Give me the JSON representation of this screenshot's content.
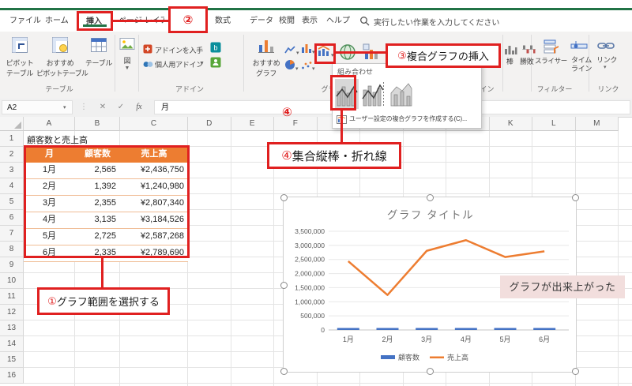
{
  "tabs": {
    "file": "ファイル",
    "home": "ホーム",
    "insert": "挿入",
    "page_layout": "ページ レイアウト",
    "formulas": "数式",
    "data": "データ",
    "review": "校閲",
    "view": "表示",
    "help": "ヘルプ",
    "search_placeholder": "実行したい作業を入力してください"
  },
  "ribbon": {
    "pivot_l1": "ピボット",
    "pivot_l2": "テーブル",
    "reco_pivot_l1": "おすすめ",
    "reco_pivot_l2": "ピボットテーブル",
    "table_btn": "テーブル",
    "illustrations": "図",
    "get_addins": "アドインを入手",
    "my_addins": "個人用アドイン",
    "reco_chart_l1": "おすすめ",
    "reco_chart_l2": "グラフ",
    "spark_col": "棒",
    "spark_winloss": "勝敗",
    "slicer": "スライサー",
    "timeline_l1": "タイム",
    "timeline_l2": "ライン",
    "link": "リンク",
    "groups": {
      "table": "テーブル",
      "addins": "アドイン",
      "charts": "グラフ",
      "sparklines": "スパークライン",
      "filters": "フィルター",
      "links": "リンク"
    }
  },
  "combo_menu": {
    "header": "組み合わせ",
    "custom": "ユーザー設定の複合グラフを作成する(C)..."
  },
  "annotations": {
    "step1_num": "①",
    "step1_text": "グラフ範囲を選択する",
    "step2_num": "②",
    "step3_num": "③",
    "step3_text": "複合グラフの挿入",
    "step4_num": "④",
    "step4_text": "集合縦棒・折れ線",
    "done": "グラフが出来上がった"
  },
  "formula_bar": {
    "name_box": "A2",
    "value": "月"
  },
  "sheet": {
    "col_headers": [
      "A",
      "B",
      "C",
      "D",
      "E",
      "F",
      "G",
      "H",
      "I",
      "J",
      "K",
      "L",
      "M"
    ],
    "row_headers": [
      "1",
      "2",
      "3",
      "4",
      "5",
      "6",
      "7",
      "8",
      "9",
      "10",
      "11",
      "12",
      "13",
      "14",
      "15",
      "16"
    ],
    "a1_title": "顧客数と売上高",
    "table": {
      "headers": [
        "月",
        "顧客数",
        "売上高"
      ],
      "rows": [
        [
          "1月",
          "2,565",
          "¥2,436,750"
        ],
        [
          "2月",
          "1,392",
          "¥1,240,980"
        ],
        [
          "3月",
          "2,355",
          "¥2,807,340"
        ],
        [
          "4月",
          "3,135",
          "¥3,184,526"
        ],
        [
          "5月",
          "2,725",
          "¥2,587,268"
        ],
        [
          "6月",
          "2,335",
          "¥2,789,690"
        ]
      ]
    }
  },
  "chart_data": {
    "type": "combo",
    "title": "グラフ タイトル",
    "categories": [
      "1月",
      "2月",
      "3月",
      "4月",
      "5月",
      "6月"
    ],
    "series": [
      {
        "name": "顧客数",
        "type": "bar",
        "color": "#4472C4",
        "values": [
          2565,
          1392,
          2355,
          3135,
          2725,
          2335
        ]
      },
      {
        "name": "売上高",
        "type": "line",
        "color": "#ED7D31",
        "values": [
          2436750,
          1240980,
          2807340,
          3184526,
          2587268,
          2789690
        ]
      }
    ],
    "ylim": [
      0,
      3500000
    ],
    "y_ticks": [
      "3,500,000",
      "3,000,000",
      "2,500,000",
      "2,000,000",
      "1,500,000",
      "1,000,000",
      "500,000",
      "0"
    ],
    "grid": true,
    "legend_position": "bottom"
  },
  "colors": {
    "excel_green": "#217346",
    "annotation_red": "#E02020",
    "table_orange": "#ED7D31",
    "bar_blue": "#4472C4",
    "line_orange": "#ED7D31",
    "done_label_bg": "#F2DEDD"
  }
}
